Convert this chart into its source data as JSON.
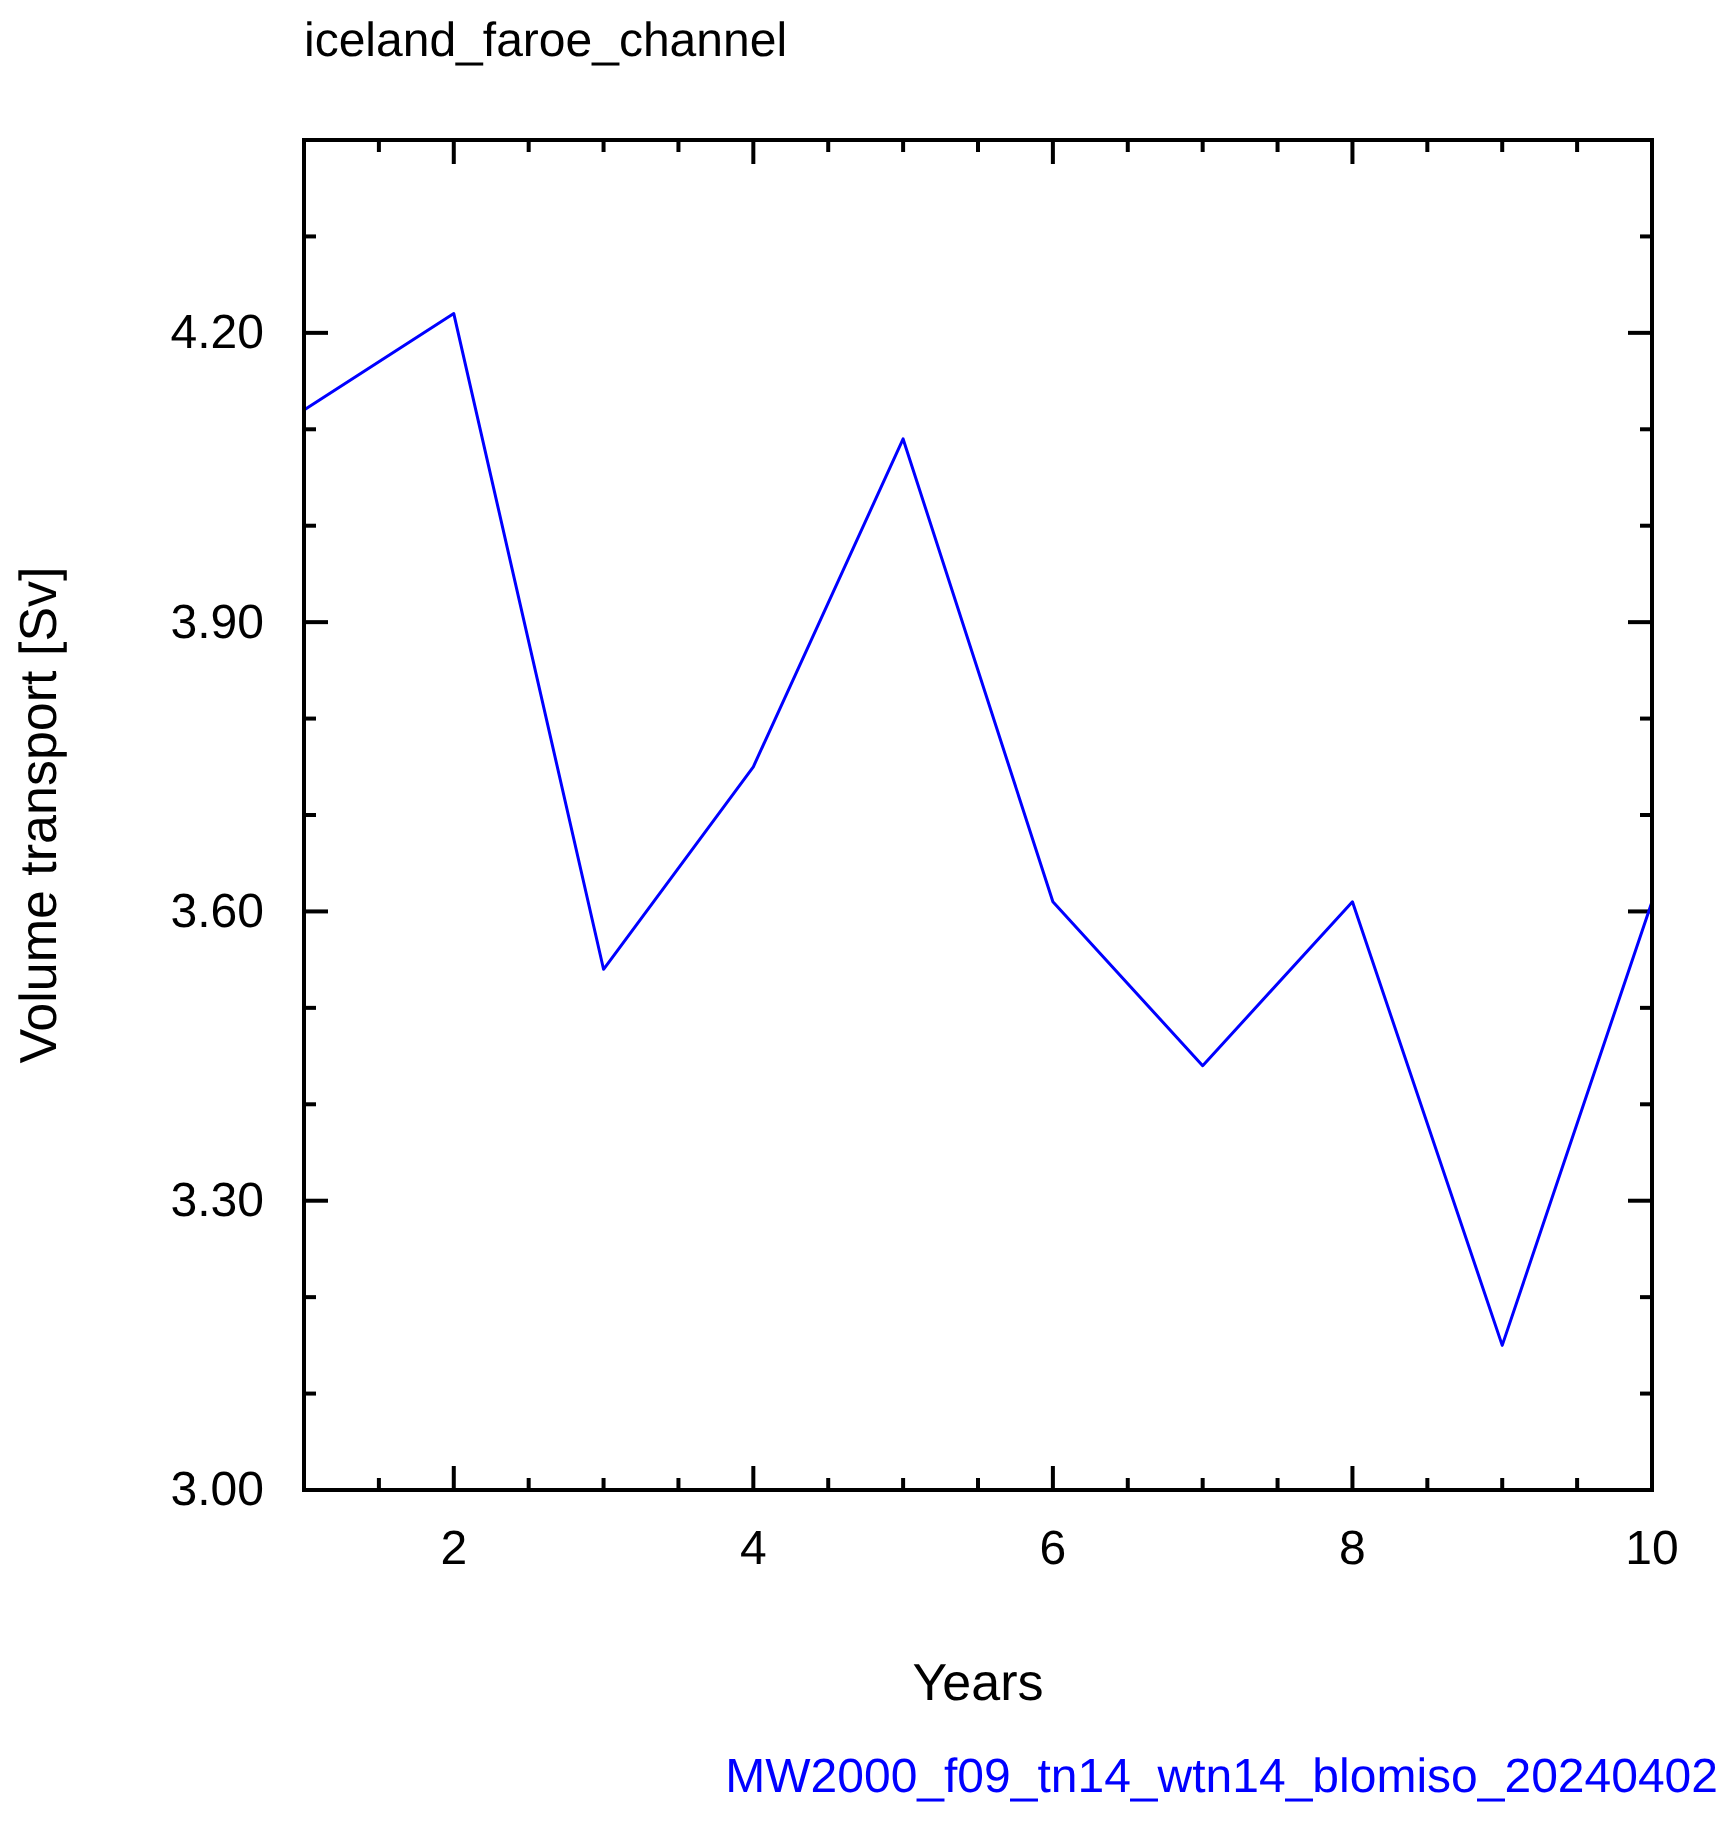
{
  "chart_data": {
    "type": "line",
    "title": "iceland_faroe_channel",
    "xlabel": "Years",
    "ylabel": "Volume transport [Sv]",
    "annotations": [
      "MW2000_f09_tn14_wtn14_blomiso_20240402"
    ],
    "x": [
      1,
      2,
      3,
      4,
      5,
      6,
      7,
      8,
      9,
      10
    ],
    "series": [
      {
        "color": "#0000ff",
        "values": [
          4.12,
          4.22,
          3.54,
          3.75,
          4.09,
          3.61,
          3.44,
          3.61,
          3.15,
          3.61
        ]
      }
    ],
    "xlim": [
      1,
      10
    ],
    "xticks": [
      {
        "value": 1.5,
        "label": null
      },
      2,
      {
        "value": 2.5,
        "label": null
      },
      {
        "value": 3,
        "label": null
      },
      {
        "value": 3.5,
        "label": null
      },
      4,
      {
        "value": 4.5,
        "label": null
      },
      {
        "value": 5,
        "label": null
      },
      {
        "value": 5.5,
        "label": null
      },
      6,
      {
        "value": 6.5,
        "label": null
      },
      {
        "value": 7,
        "label": null
      },
      {
        "value": 7.5,
        "label": null
      },
      8,
      {
        "value": 8.5,
        "label": null
      },
      {
        "value": 9,
        "label": null
      },
      {
        "value": 9.5,
        "label": null
      },
      10
    ],
    "ylim": [
      3.0,
      4.4
    ],
    "yticks": [
      {
        "value": 3.0,
        "label": "3.00"
      },
      {
        "value": 3.1,
        "label": null
      },
      {
        "value": 3.2,
        "label": null
      },
      {
        "value": 3.3,
        "label": "3.30"
      },
      {
        "value": 3.4,
        "label": null
      },
      {
        "value": 3.5,
        "label": null
      },
      {
        "value": 3.6,
        "label": "3.60"
      },
      {
        "value": 3.7,
        "label": null
      },
      {
        "value": 3.8,
        "label": null
      },
      {
        "value": 3.9,
        "label": "3.90"
      },
      {
        "value": 4.0,
        "label": null
      },
      {
        "value": 4.1,
        "label": null
      },
      {
        "value": 4.2,
        "label": "4.20"
      },
      {
        "value": 4.3,
        "label": null
      },
      {
        "value": 4.4,
        "label": null
      }
    ],
    "grid": false,
    "marker": "none",
    "line_style": "solid"
  }
}
